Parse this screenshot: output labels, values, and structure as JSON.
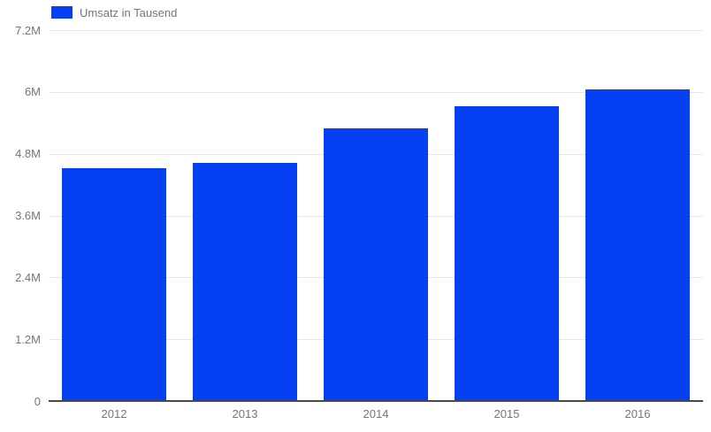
{
  "chart_data": {
    "type": "bar",
    "title": "",
    "legend": {
      "label": "Umsatz in Tausend",
      "position": "top"
    },
    "categories": [
      "2012",
      "2013",
      "2014",
      "2015",
      "2016"
    ],
    "series": [
      {
        "name": "Umsatz in Tausend",
        "values": [
          4500000,
          4600000,
          5270000,
          5700000,
          6040000
        ]
      }
    ],
    "xlabel": "",
    "ylabel": "",
    "ylim": [
      0,
      7200000
    ],
    "yticks": [
      {
        "value": 0,
        "label": "0"
      },
      {
        "value": 1200000,
        "label": "1.2M"
      },
      {
        "value": 2400000,
        "label": "2.4M"
      },
      {
        "value": 3600000,
        "label": "3.6M"
      },
      {
        "value": 4800000,
        "label": "4.8M"
      },
      {
        "value": 6000000,
        "label": "6M"
      },
      {
        "value": 7200000,
        "label": "7.2M"
      }
    ],
    "grid": true,
    "legend_position": "top-left",
    "colors": {
      "bar": "#0540f2",
      "axis_label": "#757575",
      "gridline": "#e6e6e6",
      "baseline": "#494949",
      "background": "#ffffff"
    }
  }
}
